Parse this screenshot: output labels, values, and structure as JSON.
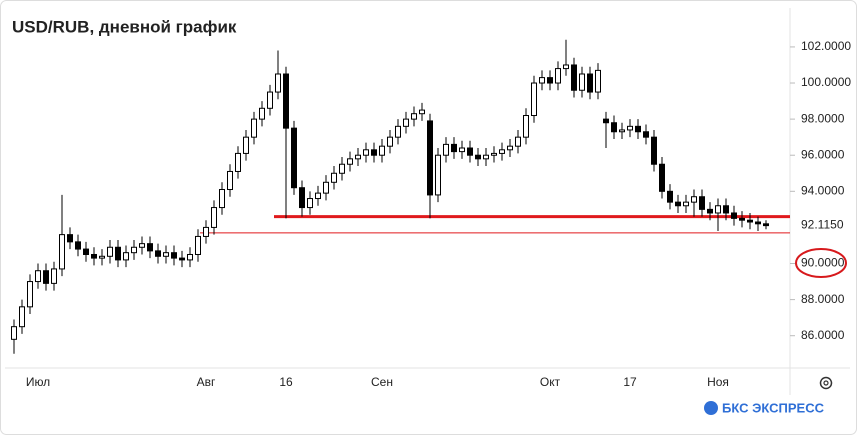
{
  "chart_data": {
    "type": "candlestick",
    "title": "USD/RUB, дневной график",
    "brand": "БКС ЭКСПРЕСС",
    "categories": [
      null,
      null,
      null,
      "Июл",
      null,
      null,
      null,
      null,
      null,
      null,
      null,
      null,
      null,
      null,
      null,
      null,
      null,
      null,
      null,
      null,
      null,
      null,
      null,
      null,
      "Авг",
      null,
      null,
      null,
      null,
      null,
      null,
      null,
      null,
      null,
      "16",
      null,
      null,
      null,
      null,
      null,
      null,
      null,
      null,
      null,
      null,
      null,
      "Сен",
      null,
      null,
      null,
      null,
      null,
      null,
      null,
      null,
      null,
      null,
      null,
      null,
      null,
      null,
      null,
      null,
      null,
      null,
      null,
      null,
      "Окт",
      null,
      null,
      null,
      null,
      null,
      null,
      null,
      null,
      null,
      "17",
      null,
      null,
      null,
      null,
      null,
      null,
      null,
      null,
      null,
      null,
      "Ноя",
      null,
      null,
      null,
      null,
      null,
      null
    ],
    "open": [
      85.8,
      86.5,
      87.6,
      89.0,
      89.6,
      88.9,
      89.7,
      91.6,
      91.2,
      90.8,
      90.5,
      90.3,
      90.4,
      90.9,
      90.2,
      90.6,
      90.9,
      91.1,
      90.7,
      90.4,
      90.6,
      90.3,
      90.2,
      90.5,
      91.5,
      92.0,
      93.1,
      94.1,
      95.1,
      96.1,
      97.0,
      98.0,
      98.6,
      99.5,
      100.5,
      97.5,
      94.2,
      93.1,
      93.6,
      93.9,
      94.5,
      95.0,
      95.5,
      95.8,
      96.0,
      96.3,
      96.0,
      96.5,
      97.0,
      97.6,
      98.0,
      98.3,
      97.9,
      93.8,
      96.0,
      96.6,
      96.2,
      96.4,
      96.0,
      95.8,
      96.0,
      96.1,
      96.3,
      96.5,
      97.0,
      98.2,
      100.0,
      100.3,
      100.0,
      100.8,
      101.0,
      99.6,
      100.5,
      99.5,
      98.0,
      97.8,
      97.3,
      97.4,
      97.6,
      97.3,
      97.0,
      95.5,
      94.0,
      93.4,
      93.2,
      93.4,
      93.7,
      93.0,
      92.8,
      93.2,
      92.8,
      92.5,
      92.4,
      92.3,
      92.2
    ],
    "high": [
      86.9,
      88.0,
      89.4,
      90.0,
      90.0,
      90.1,
      93.8,
      92.0,
      91.6,
      91.2,
      90.9,
      90.8,
      91.3,
      91.3,
      91.0,
      91.3,
      91.5,
      91.5,
      91.1,
      91.0,
      91.0,
      90.7,
      90.9,
      91.9,
      92.4,
      93.5,
      94.5,
      95.5,
      96.5,
      97.4,
      98.4,
      99.0,
      99.9,
      101.8,
      100.9,
      97.9,
      94.6,
      94.0,
      94.3,
      94.9,
      95.4,
      95.9,
      96.2,
      96.4,
      96.7,
      96.7,
      96.9,
      97.4,
      98.0,
      98.4,
      98.7,
      98.9,
      98.3,
      96.4,
      97.0,
      97.0,
      96.8,
      96.8,
      96.4,
      96.4,
      96.5,
      96.7,
      96.9,
      97.4,
      98.6,
      100.4,
      100.7,
      100.7,
      101.2,
      102.4,
      101.4,
      100.9,
      100.9,
      101.1,
      98.4,
      98.2,
      97.8,
      98.0,
      98.0,
      97.7,
      97.4,
      95.9,
      94.4,
      93.8,
      93.8,
      94.1,
      94.1,
      93.4,
      93.6,
      93.6,
      93.2,
      92.9,
      92.8,
      92.6,
      92.4
    ],
    "low": [
      85.0,
      86.1,
      87.2,
      88.6,
      88.5,
      88.5,
      89.3,
      90.8,
      90.4,
      90.1,
      89.9,
      89.9,
      90.0,
      89.8,
      89.8,
      90.2,
      90.5,
      90.3,
      90.0,
      90.0,
      89.9,
      89.8,
      89.8,
      90.1,
      91.1,
      91.6,
      92.7,
      93.7,
      94.7,
      95.7,
      96.6,
      97.6,
      98.2,
      99.1,
      92.5,
      93.8,
      92.6,
      92.7,
      93.2,
      93.5,
      94.1,
      94.6,
      95.1,
      95.4,
      95.6,
      95.6,
      95.6,
      96.1,
      96.6,
      97.2,
      97.6,
      97.9,
      92.5,
      93.4,
      95.6,
      95.8,
      95.8,
      95.6,
      95.4,
      95.4,
      95.6,
      95.7,
      95.9,
      96.1,
      96.6,
      97.8,
      99.6,
      99.6,
      99.6,
      100.4,
      99.2,
      99.2,
      99.1,
      99.1,
      96.4,
      96.9,
      96.9,
      97.0,
      96.9,
      96.6,
      95.1,
      93.6,
      93.0,
      92.8,
      92.8,
      92.6,
      92.6,
      92.4,
      91.8,
      92.4,
      92.1,
      92.0,
      91.9,
      91.8,
      91.9
    ],
    "close": [
      86.5,
      87.6,
      89.0,
      89.6,
      88.9,
      89.7,
      91.6,
      91.2,
      90.8,
      90.5,
      90.3,
      90.4,
      90.9,
      90.2,
      90.6,
      90.9,
      91.1,
      90.7,
      90.4,
      90.6,
      90.3,
      90.2,
      90.5,
      91.5,
      92.0,
      93.1,
      94.1,
      95.1,
      96.1,
      97.0,
      98.0,
      98.6,
      99.5,
      100.5,
      97.5,
      94.2,
      93.1,
      93.6,
      93.9,
      94.5,
      95.0,
      95.5,
      95.8,
      96.0,
      96.3,
      96.0,
      96.5,
      97.0,
      97.6,
      98.0,
      98.3,
      98.5,
      93.8,
      96.0,
      96.6,
      96.2,
      96.4,
      96.0,
      95.8,
      96.0,
      96.1,
      96.3,
      96.5,
      97.0,
      98.2,
      100.0,
      100.3,
      100.0,
      100.8,
      101.0,
      99.6,
      100.5,
      99.5,
      100.7,
      97.8,
      97.3,
      97.4,
      97.6,
      97.3,
      97.0,
      95.5,
      94.0,
      93.4,
      93.2,
      93.4,
      93.7,
      93.0,
      92.8,
      93.2,
      92.8,
      92.5,
      92.4,
      92.3,
      92.2,
      92.1
    ],
    "ylim": [
      84.1,
      104.6
    ],
    "yticks": [
      {
        "value": 86,
        "label": "86.0000"
      },
      {
        "value": 88,
        "label": "88.0000"
      },
      {
        "value": 90,
        "label": "90.0000"
      },
      {
        "value": 94,
        "label": "94.0000"
      },
      {
        "value": 96,
        "label": "96.0000"
      },
      {
        "value": 98,
        "label": "98.0000"
      },
      {
        "value": 100,
        "label": "100.0000"
      },
      {
        "value": 102,
        "label": "102.0000"
      }
    ],
    "price_label": {
      "value": 92.115,
      "label": "92.1150"
    },
    "levels": [
      92.6,
      91.7
    ],
    "up_color": "#ffffff",
    "down_color": "#000000",
    "level_color": "#e0191c"
  }
}
